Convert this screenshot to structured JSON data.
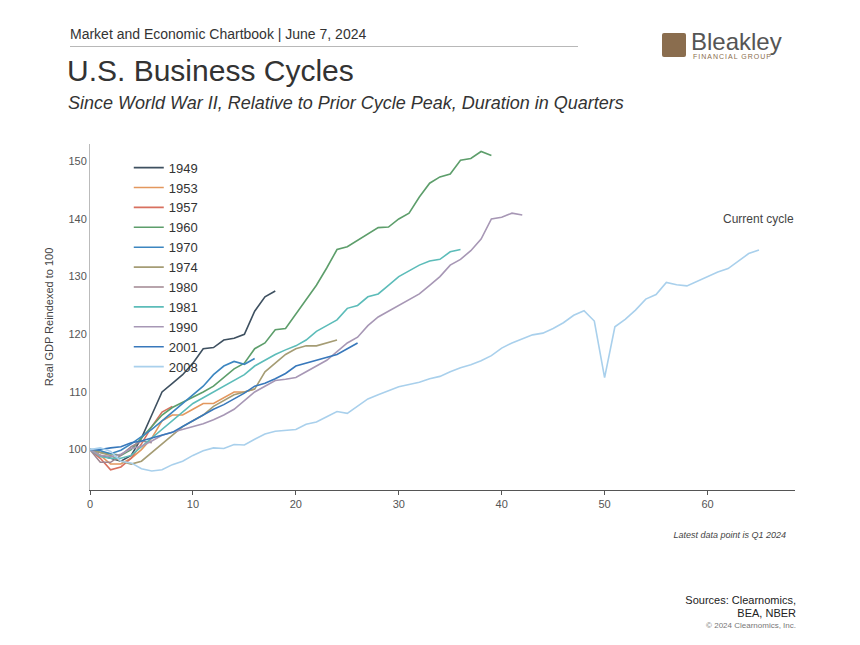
{
  "page": {
    "header": "Market and Economic Chartbook | June 7, 2024",
    "logo": [
      "Bleakley",
      "FINANCIAL GROUP"
    ],
    "note": "Latest data point is Q1 2024",
    "source": [
      "Sources: Clearnomics,",
      "BEA, NBER"
    ],
    "copyright": "© 2024 Clearnomics, Inc."
  },
  "chart_data": {
    "type": "line",
    "title": "U.S. Business Cycles",
    "subtitle": "Since World War II, Relative to Prior Cycle Peak, Duration in Quarters",
    "y_label": "Real GDP Reindexed to 100",
    "annotation": "Current cycle",
    "legend": "upper left",
    "grid": false,
    "xlim": [
      0,
      68.5
    ],
    "xticks": [
      0,
      10,
      20,
      30,
      40,
      50,
      60
    ],
    "ylim": [
      93,
      153
    ],
    "yticks": [
      100,
      110,
      120,
      130,
      140,
      150
    ],
    "x": [
      0,
      1,
      2,
      3,
      4,
      5,
      6,
      7,
      8,
      9,
      10,
      11,
      12,
      13,
      14,
      15,
      16,
      17,
      18,
      19,
      20,
      21,
      22,
      23,
      24,
      25,
      26,
      27,
      28,
      29,
      30,
      31,
      32,
      33,
      34,
      35,
      36,
      37,
      38,
      39,
      40,
      41,
      42,
      43,
      44,
      45,
      46,
      47,
      48,
      49,
      50,
      51,
      52,
      53,
      54,
      55,
      56,
      57,
      58,
      59,
      60,
      61,
      62,
      63,
      64,
      65
    ],
    "series": [
      {
        "name": "1949",
        "color": "#3e5060",
        "values": [
          100,
          99,
          98.5,
          98,
          99,
          102,
          106,
          110,
          111.5,
          113,
          115,
          117.5,
          117.7,
          119,
          119.3,
          120,
          124,
          126.5,
          127.5,
          null,
          null,
          null,
          null,
          null,
          null,
          null,
          null,
          null,
          null,
          null,
          null,
          null,
          null,
          null,
          null,
          null,
          null,
          null,
          null,
          null,
          null,
          null,
          null,
          null,
          null,
          null,
          null,
          null,
          null,
          null,
          null,
          null,
          null,
          null,
          null,
          null,
          null,
          null,
          null,
          null,
          null,
          null,
          null,
          null,
          null,
          null
        ]
      },
      {
        "name": "1953",
        "color": "#e3975e",
        "values": [
          100,
          99,
          97.5,
          97.5,
          98.5,
          100,
          102,
          105,
          106,
          106,
          107,
          108,
          108,
          109,
          110,
          110,
          110.5,
          null,
          null,
          null,
          null,
          null,
          null,
          null,
          null,
          null,
          null,
          null,
          null,
          null,
          null,
          null,
          null,
          null,
          null,
          null,
          null,
          null,
          null,
          null,
          null,
          null,
          null,
          null,
          null,
          null,
          null,
          null,
          null,
          null,
          null,
          null,
          null,
          null,
          null,
          null,
          null,
          null,
          null,
          null,
          null,
          null,
          null,
          null,
          null,
          null
        ]
      },
      {
        "name": "1957",
        "color": "#d8705f",
        "values": [
          100,
          98.5,
          96.5,
          97,
          98.5,
          101,
          104,
          106.5,
          107.5,
          null,
          null,
          null,
          null,
          null,
          null,
          null,
          null,
          null,
          null,
          null,
          null,
          null,
          null,
          null,
          null,
          null,
          null,
          null,
          null,
          null,
          null,
          null,
          null,
          null,
          null,
          null,
          null,
          null,
          null,
          null,
          null,
          null,
          null,
          null,
          null,
          null,
          null,
          null,
          null,
          null,
          null,
          null,
          null,
          null,
          null,
          null,
          null,
          null,
          null,
          null,
          null,
          null,
          null,
          null,
          null,
          null
        ]
      },
      {
        "name": "1960",
        "color": "#5d9e6b",
        "values": [
          100,
          99.5,
          99.3,
          99,
          100,
          102,
          104,
          106,
          107.3,
          108.2,
          109,
          110,
          111,
          112.5,
          114,
          115,
          117.5,
          118.5,
          120.8,
          121,
          123.5,
          126,
          128.5,
          131.5,
          134.7,
          135.2,
          136.3,
          137.3,
          138.5,
          138.6,
          140,
          141,
          143.8,
          146.2,
          147.3,
          147.8,
          150.2,
          150.5,
          151.7,
          151,
          null,
          null,
          null,
          null,
          null,
          null,
          null,
          null,
          null,
          null,
          null,
          null,
          null,
          null,
          null,
          null,
          null,
          null,
          null,
          null,
          null,
          null,
          null,
          null,
          null,
          null
        ]
      },
      {
        "name": "1970",
        "color": "#3c86c0",
        "values": [
          100,
          99.8,
          99.3,
          99.9,
          101,
          102.3,
          103.5,
          105,
          106.5,
          108,
          109.5,
          111,
          113,
          114.5,
          115.3,
          114.8,
          115.8,
          null,
          null,
          null,
          null,
          null,
          null,
          null,
          null,
          null,
          null,
          null,
          null,
          null,
          null,
          null,
          null,
          null,
          null,
          null,
          null,
          null,
          null,
          null,
          null,
          null,
          null,
          null,
          null,
          null,
          null,
          null,
          null,
          null,
          null,
          null,
          null,
          null,
          null,
          null,
          null,
          null,
          null,
          null,
          null,
          null,
          null,
          null,
          null,
          null
        ]
      },
      {
        "name": "1974",
        "color": "#a59c74",
        "values": [
          100,
          99.5,
          99,
          98,
          97.5,
          98,
          99.5,
          101,
          102.5,
          104,
          105,
          106,
          107.5,
          108.5,
          109.5,
          110,
          110.5,
          113.5,
          115,
          116.5,
          117.5,
          118,
          118,
          118.5,
          119,
          null,
          null,
          null,
          null,
          null,
          null,
          null,
          null,
          null,
          null,
          null,
          null,
          null,
          null,
          null,
          null,
          null,
          null,
          null,
          null,
          null,
          null,
          null,
          null,
          null,
          null,
          null,
          null,
          null,
          null,
          null,
          null,
          null,
          null,
          null,
          null,
          null,
          null,
          null,
          null,
          null
        ]
      },
      {
        "name": "1980",
        "color": "#a08690",
        "values": [
          100,
          97.8,
          97.8,
          99,
          100.5,
          101.5,
          101.2,
          null,
          null,
          null,
          null,
          null,
          null,
          null,
          null,
          null,
          null,
          null,
          null,
          null,
          null,
          null,
          null,
          null,
          null,
          null,
          null,
          null,
          null,
          null,
          null,
          null,
          null,
          null,
          null,
          null,
          null,
          null,
          null,
          null,
          null,
          null,
          null,
          null,
          null,
          null,
          null,
          null,
          null,
          null,
          null,
          null,
          null,
          null,
          null,
          null,
          null,
          null,
          null,
          null,
          null,
          null,
          null,
          null,
          null,
          null
        ]
      },
      {
        "name": "1981",
        "color": "#5cbcb9",
        "values": [
          100,
          98.8,
          98.5,
          98.5,
          99,
          100.5,
          102,
          103.5,
          105,
          106.5,
          108,
          109,
          110,
          111,
          112,
          113,
          114.5,
          115.5,
          116.5,
          117.3,
          118,
          119,
          120.5,
          121.5,
          122.5,
          124.5,
          125,
          126.5,
          127,
          128.5,
          130,
          131,
          132,
          132.7,
          133,
          134.3,
          134.7,
          null,
          null,
          null,
          null,
          null,
          null,
          null,
          null,
          null,
          null,
          null,
          null,
          null,
          null,
          null,
          null,
          null,
          null,
          null,
          null,
          null,
          null,
          null,
          null,
          null,
          null,
          null,
          null,
          null
        ]
      },
      {
        "name": "1990",
        "color": "#a797b5",
        "values": [
          100,
          99,
          98.8,
          99.2,
          100.2,
          100.6,
          101.5,
          102.5,
          103,
          103.5,
          104,
          104.5,
          105.2,
          106,
          107,
          108.5,
          110,
          111,
          112,
          112.2,
          112.5,
          113.5,
          114.5,
          115.5,
          117,
          118.5,
          119.5,
          121.5,
          123,
          124,
          125,
          126,
          127,
          128.5,
          130,
          132,
          133,
          134.5,
          136.5,
          140,
          140.3,
          141,
          140.7,
          null,
          null,
          null,
          null,
          null,
          null,
          null,
          null,
          null,
          null,
          null,
          null,
          null,
          null,
          null,
          null,
          null,
          null,
          null,
          null,
          null,
          null,
          null
        ]
      },
      {
        "name": "2001",
        "color": "#3878bb",
        "values": [
          100,
          100,
          100.3,
          100.5,
          101.2,
          101.5,
          102,
          102.5,
          103,
          104,
          105,
          106,
          107,
          107.8,
          108.8,
          109.8,
          111,
          111.5,
          112.3,
          113.2,
          114.5,
          115,
          115.4,
          116,
          116.5,
          117.5,
          118.5,
          null,
          null,
          null,
          null,
          null,
          null,
          null,
          null,
          null,
          null,
          null,
          null,
          null,
          null,
          null,
          null,
          null,
          null,
          null,
          null,
          null,
          null,
          null,
          null,
          null,
          null,
          null,
          null,
          null,
          null,
          null,
          null,
          null,
          null,
          null,
          null,
          null,
          null,
          null
        ]
      },
      {
        "name": "2008",
        "color": "#a9d0ec",
        "values": [
          100,
          100.3,
          99.7,
          98,
          97.7,
          96.7,
          96.3,
          96.5,
          97.4,
          98,
          99,
          99.8,
          100.3,
          100.2,
          100.9,
          100.8,
          101.8,
          102.7,
          103.2,
          103.3,
          103.5,
          104.4,
          104.8,
          105.7,
          106.6,
          106.3,
          107.6,
          108.8,
          109.5,
          110.2,
          110.9,
          111.3,
          111.7,
          112.3,
          112.7,
          113.5,
          114.2,
          114.7,
          115.4,
          116.3,
          117.6,
          118.5,
          119.2,
          119.9,
          120.2,
          121,
          122,
          123.3,
          124.1,
          122.3,
          112.5,
          121.3,
          122.6,
          124.2,
          126.1,
          126.9,
          129,
          128.6,
          128.4,
          129.2,
          130.1,
          130.8,
          131.4,
          132.7,
          134,
          134.6
        ]
      }
    ]
  }
}
